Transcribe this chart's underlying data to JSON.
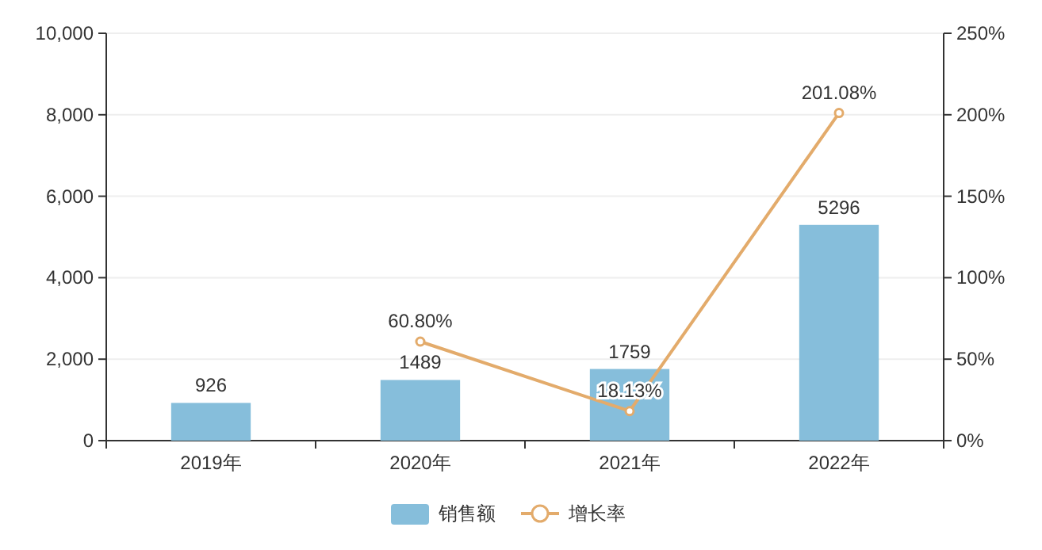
{
  "chart_data": {
    "type": "bar",
    "categories": [
      "2019年",
      "2020年",
      "2021年",
      "2022年"
    ],
    "series": [
      {
        "name": "销售额",
        "color": "#86bedb",
        "values": [
          926,
          1489,
          1759,
          5296
        ],
        "value_labels": [
          "926",
          "1489",
          "1759",
          "5296"
        ]
      },
      {
        "name": "增长率",
        "type": "line",
        "axis": "y2",
        "color": "#e3ab6b",
        "marker": "circle",
        "values": [
          null,
          60.8,
          18.13,
          201.08
        ],
        "value_labels": [
          null,
          "60.80%",
          "18.13%",
          "201.08%"
        ]
      }
    ],
    "ylim": [
      0,
      10000
    ],
    "yticks": [
      0,
      {
        "value": 2000,
        "label": "2,000"
      },
      {
        "value": 4000,
        "label": "4,000"
      },
      {
        "value": 6000,
        "label": "6,000"
      },
      {
        "value": 8000,
        "label": "8,000"
      },
      {
        "value": 10000,
        "label": "10,000"
      }
    ],
    "y2lim": [
      0,
      250
    ],
    "y2ticks": [
      {
        "value": 0,
        "label": "0%"
      },
      {
        "value": 50,
        "label": "50%"
      },
      {
        "value": 100,
        "label": "100%"
      },
      {
        "value": 150,
        "label": "150%"
      },
      {
        "value": 200,
        "label": "200%"
      },
      {
        "value": 250,
        "label": "250%"
      }
    ],
    "grid": "y",
    "legend": "bottom"
  }
}
